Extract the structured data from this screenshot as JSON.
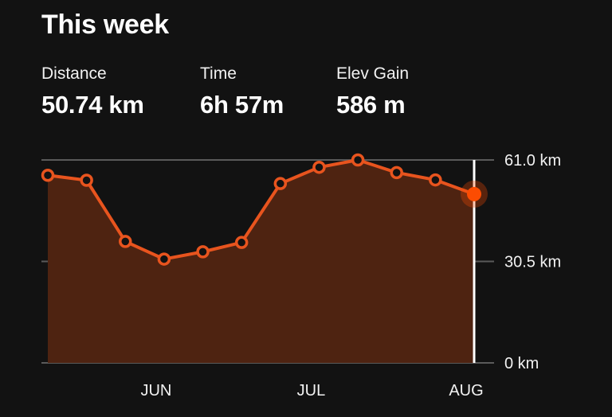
{
  "header": {
    "title": "This week"
  },
  "stats": [
    {
      "label": "Distance",
      "value": "50.74 km"
    },
    {
      "label": "Time",
      "value": "6h 57m"
    },
    {
      "label": "Elev Gain",
      "value": "586 m"
    }
  ],
  "colors": {
    "accent": "#fc4c02",
    "line": "#e8541e",
    "fill": "#4e2311",
    "grid": "#5a5a5a",
    "background": "#121212"
  },
  "chart_data": {
    "type": "area",
    "x": [
      "",
      "",
      "",
      "",
      "",
      "",
      "",
      "",
      "",
      "",
      "",
      ""
    ],
    "x_tick_labels": [
      "JUN",
      "JUL",
      "AUG"
    ],
    "series": [
      {
        "values": [
          56.4,
          54.9,
          36.5,
          31.2,
          33.4,
          36.2,
          53.9,
          58.8,
          61.0,
          57.2,
          55.0,
          50.74
        ]
      }
    ],
    "y_tick_labels": [
      "61.0 km",
      "30.5 km",
      "0 km"
    ],
    "ylim": [
      0,
      61.0
    ],
    "grid": true,
    "highlight_last_point": true
  }
}
